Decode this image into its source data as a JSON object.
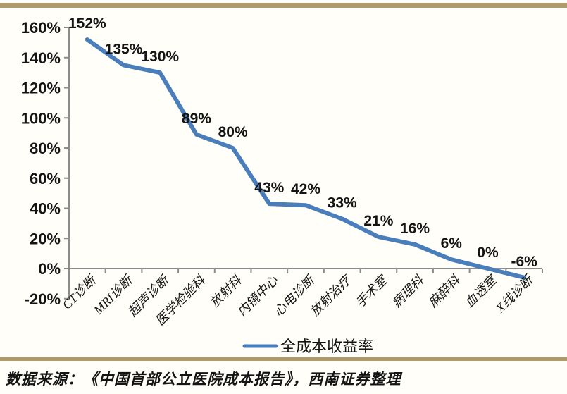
{
  "theme": {
    "background": "#FFFEF8",
    "accent_rule_color": "#B09A68",
    "axis_color": "#8C8C8C",
    "text_color": "#141414",
    "line_color": "#4A7EBB"
  },
  "chart_data": {
    "type": "line",
    "title": "",
    "categories": [
      "CT诊断",
      "MRI诊断",
      "超声诊断",
      "医学检验科",
      "放射科",
      "内镜中心",
      "心电诊断",
      "放射治疗",
      "手术室",
      "病理科",
      "麻醉科",
      "血透室",
      "X线诊断"
    ],
    "series": [
      {
        "name": "全成本收益率",
        "values": [
          152,
          135,
          130,
          89,
          80,
          43,
          42,
          33,
          21,
          16,
          6,
          0,
          -6
        ],
        "data_labels": [
          "152%",
          "135%",
          "130%",
          "89%",
          "80%",
          "43%",
          "42%",
          "33%",
          "21%",
          "16%",
          "6%",
          "0%",
          "-6%"
        ]
      }
    ],
    "xlabel": "",
    "ylabel": "",
    "ylim": [
      -20,
      160
    ],
    "y_tick_values": [
      160,
      140,
      120,
      100,
      80,
      60,
      40,
      20,
      0,
      -20
    ],
    "y_tick_labels": [
      "160%",
      "140%",
      "120%",
      "100%",
      "80%",
      "60%",
      "40%",
      "20%",
      "0%",
      "-20%"
    ],
    "grid": false,
    "legend_position": "bottom",
    "legend_entries": [
      "全成本收益率"
    ]
  },
  "footer": {
    "source_note": "数据来源：《中国首部公立医院成本报告》，西南证券整理"
  }
}
